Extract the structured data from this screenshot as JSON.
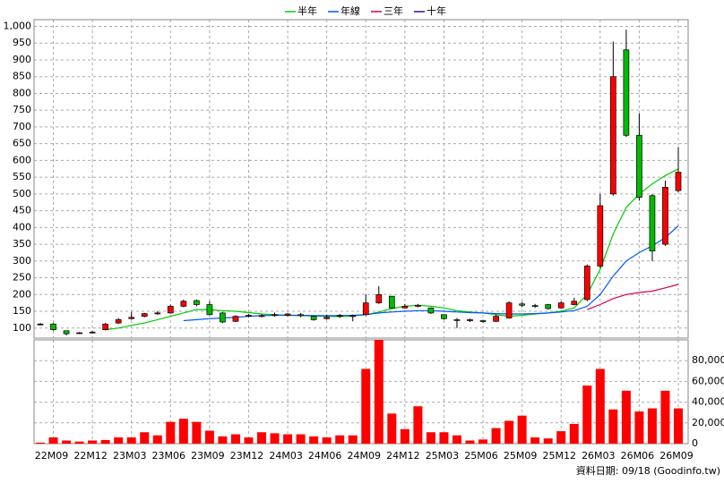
{
  "chart_data": [
    {
      "type": "candlestick",
      "series": [
        {
          "name": "半年",
          "color": "#00cc00",
          "values": [
            null,
            null,
            null,
            null,
            null,
            95,
            100,
            108,
            115,
            125,
            135,
            145,
            155,
            155,
            152,
            150,
            146,
            142,
            140,
            138,
            137,
            136,
            135,
            134,
            136,
            140,
            148,
            158,
            165,
            168,
            165,
            160,
            152,
            148,
            145,
            140,
            135,
            138,
            142,
            145,
            150,
            160,
            200,
            275,
            380,
            460,
            500,
            530,
            555,
            575
          ]
        },
        {
          "name": "年線",
          "color": "#0055ff",
          "values": [
            null,
            null,
            null,
            null,
            null,
            null,
            null,
            null,
            null,
            null,
            null,
            122,
            125,
            128,
            130,
            132,
            135,
            137,
            138,
            138,
            138,
            137,
            137,
            137,
            138,
            140,
            145,
            148,
            150,
            152,
            152,
            150,
            148,
            146,
            145,
            143,
            142,
            142,
            143,
            145,
            148,
            152,
            165,
            200,
            255,
            300,
            325,
            345,
            370,
            405
          ]
        },
        {
          "name": "三年",
          "color": "#dd0044",
          "values": [
            null,
            null,
            null,
            null,
            null,
            null,
            null,
            null,
            null,
            null,
            null,
            null,
            null,
            null,
            null,
            null,
            null,
            null,
            null,
            null,
            null,
            null,
            null,
            null,
            null,
            null,
            null,
            null,
            null,
            null,
            null,
            null,
            null,
            null,
            null,
            null,
            null,
            null,
            null,
            null,
            null,
            null,
            155,
            170,
            188,
            200,
            206,
            210,
            220,
            230
          ]
        },
        {
          "name": "十年",
          "color": "#440099",
          "values": [
            null,
            null,
            null,
            null,
            null,
            null,
            null,
            null,
            null,
            null,
            null,
            null,
            null,
            null,
            null,
            null,
            null,
            null,
            null,
            null,
            null,
            null,
            null,
            null,
            null,
            null,
            null,
            null,
            null,
            null,
            null,
            null,
            null,
            null,
            null,
            null,
            null,
            null,
            null,
            null,
            null,
            null,
            null,
            null,
            null,
            null,
            null,
            null,
            null,
            null
          ]
        }
      ],
      "open": [
        110,
        112,
        92,
        84,
        86,
        95,
        115,
        128,
        135,
        143,
        145,
        165,
        182,
        170,
        145,
        120,
        136,
        135,
        138,
        138,
        140,
        135,
        128,
        135,
        135,
        140,
        175,
        195,
        160,
        165,
        160,
        140,
        125,
        122,
        122,
        120,
        130,
        172,
        167,
        170,
        160,
        170,
        185,
        285,
        500,
        930,
        675,
        495,
        350,
        510
      ],
      "high": [
        115,
        115,
        92,
        88,
        92,
        115,
        130,
        148,
        145,
        150,
        170,
        185,
        185,
        180,
        148,
        138,
        142,
        142,
        146,
        145,
        145,
        138,
        140,
        142,
        140,
        200,
        225,
        195,
        172,
        172,
        162,
        140,
        130,
        128,
        125,
        140,
        180,
        178,
        172,
        172,
        180,
        190,
        290,
        500,
        955,
        990,
        740,
        500,
        540,
        640
      ],
      "low": [
        108,
        92,
        78,
        82,
        84,
        93,
        112,
        125,
        132,
        140,
        143,
        162,
        165,
        138,
        115,
        118,
        132,
        132,
        134,
        135,
        132,
        122,
        125,
        130,
        120,
        138,
        172,
        158,
        158,
        162,
        142,
        125,
        100,
        118,
        115,
        118,
        128,
        162,
        160,
        155,
        158,
        168,
        180,
        280,
        495,
        670,
        480,
        300,
        345,
        505
      ],
      "close": [
        112,
        95,
        83,
        86,
        88,
        112,
        125,
        132,
        143,
        145,
        165,
        180,
        170,
        140,
        118,
        135,
        138,
        137,
        140,
        142,
        138,
        125,
        132,
        138,
        137,
        175,
        200,
        160,
        165,
        168,
        145,
        128,
        123,
        125,
        120,
        135,
        175,
        168,
        165,
        158,
        175,
        180,
        285,
        465,
        850,
        675,
        490,
        330,
        520,
        565
      ],
      "up_color": "#ff0000",
      "down_color": "#00bb00",
      "ylim": [
        70,
        1020
      ],
      "yticks": [
        100,
        150,
        200,
        250,
        300,
        350,
        400,
        450,
        500,
        550,
        600,
        650,
        700,
        750,
        800,
        850,
        900,
        950,
        {
          "value": 1000,
          "label": "1,000"
        }
      ],
      "grid": true
    },
    {
      "type": "bar",
      "categories": [
        null,
        "22M09",
        null,
        null,
        "22M12",
        null,
        null,
        "23M03",
        null,
        null,
        "23M06",
        null,
        null,
        "23M09",
        null,
        null,
        "23M12",
        null,
        null,
        "24M03",
        null,
        null,
        "24M06",
        null,
        null,
        "24M09",
        null,
        null,
        "24M12",
        null,
        null,
        "25M03",
        null,
        null,
        "25M06",
        null,
        null,
        "25M09",
        null,
        null,
        "25M12",
        null,
        null,
        "26M03",
        null,
        null,
        "26M06",
        null,
        null,
        "26M09"
      ],
      "values": [
        1000,
        6000,
        3000,
        2000,
        3000,
        3500,
        6000,
        6000,
        11000,
        8000,
        21000,
        24000,
        21000,
        12500,
        7000,
        9000,
        6000,
        11000,
        10000,
        9000,
        9000,
        7000,
        6000,
        8000,
        8000,
        72000,
        100000,
        29000,
        14000,
        36000,
        11000,
        11000,
        8000,
        3000,
        4000,
        15000,
        22000,
        27000,
        6000,
        5000,
        12000,
        19000,
        56000,
        72000,
        33000,
        51000,
        31000,
        34000,
        51000,
        34000
      ],
      "color": "#ff0000",
      "ylim": [
        0,
        100000
      ],
      "yticks": [
        0,
        {
          "value": 20000,
          "label": "20,000"
        },
        {
          "value": 40000,
          "label": "40,000"
        },
        {
          "value": 60000,
          "label": "60,000"
        },
        {
          "value": 80000,
          "label": "80,000"
        }
      ],
      "grid": true
    }
  ],
  "footer": "資料日期: 09/18 (Goodinfo.tw)"
}
